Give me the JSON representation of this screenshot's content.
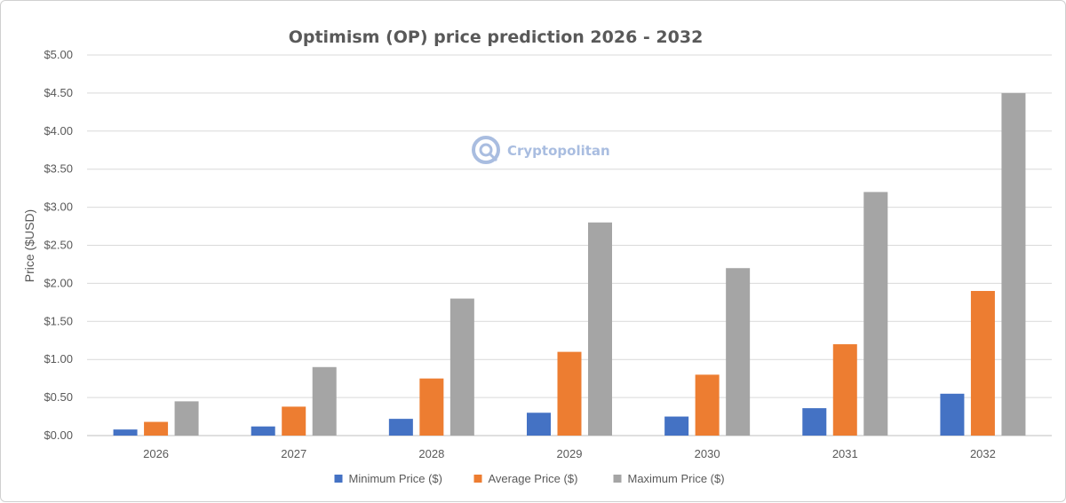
{
  "chart_data": {
    "type": "bar",
    "title": "Optimism (OP) price prediction 2026 - 2032",
    "xlabel": "",
    "ylabel": "Price ($USD)",
    "ylim": [
      0,
      5
    ],
    "y_ticks": [
      "$0.00",
      "$0.50",
      "$1.00",
      "$1.50",
      "$2.00",
      "$2.50",
      "$3.00",
      "$3.50",
      "$4.00",
      "$4.50",
      "$5.00"
    ],
    "categories": [
      "2026",
      "2027",
      "2028",
      "2029",
      "2030",
      "2031",
      "2032"
    ],
    "series": [
      {
        "name": "Minimum Price ($)",
        "color": "#4472c4",
        "values": [
          0.08,
          0.12,
          0.22,
          0.3,
          0.25,
          0.36,
          0.55
        ]
      },
      {
        "name": "Average Price ($)",
        "color": "#ed7d31",
        "values": [
          0.18,
          0.38,
          0.75,
          1.1,
          0.8,
          1.2,
          1.9
        ]
      },
      {
        "name": "Maximum Price ($)",
        "color": "#a5a5a5",
        "values": [
          0.45,
          0.9,
          1.8,
          2.8,
          2.2,
          3.2,
          4.5
        ]
      }
    ],
    "grid": true,
    "legend_position": "bottom"
  },
  "watermark": {
    "text": "Cryptopolitan",
    "icon": "cryptopolitan-logo-icon"
  }
}
